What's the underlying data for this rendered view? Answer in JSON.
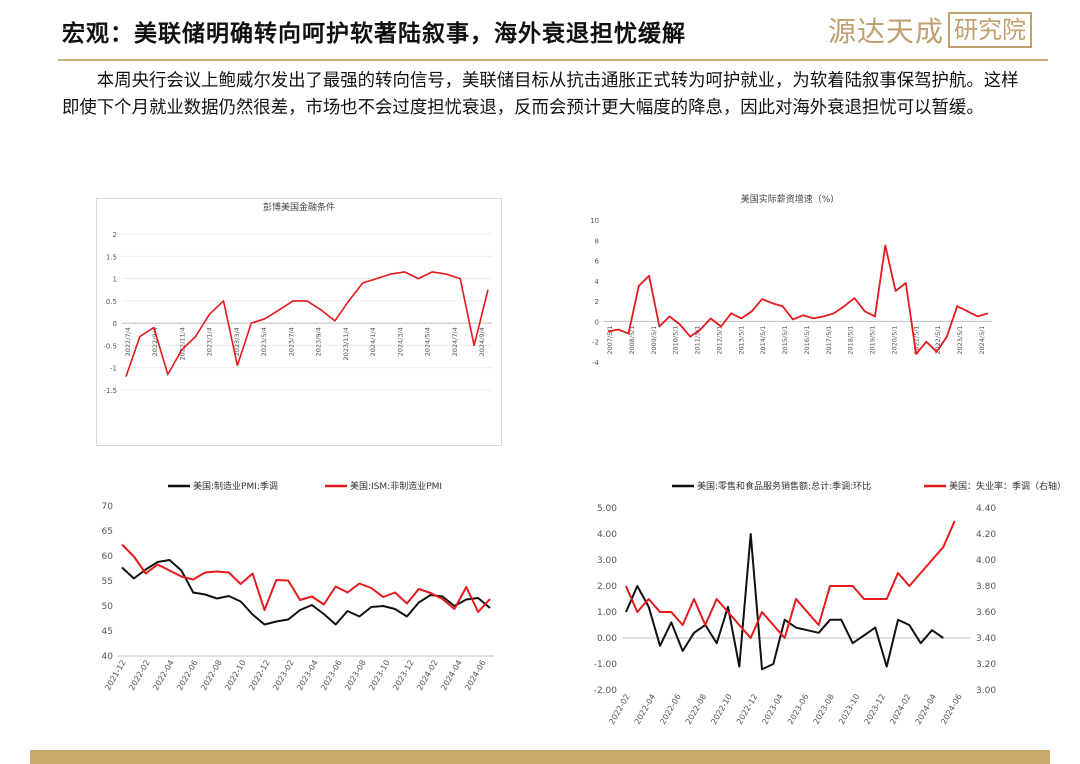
{
  "header": {
    "title": "宏观：美联储明确转向呵护软著陆叙事，海外衰退担忧缓解",
    "logo_text": "源达天成",
    "logo_box_text": "研究院"
  },
  "body_text": "本周央行会议上鲍威尔发出了最强的转向信号，美联储目标从抗击通胀正式转为呵护就业，为软着陆叙事保驾护航。这样即使下个月就业数据仍然很差，市场也不会过度担忧衰退，反而会预计更大幅度的降息，因此对海外衰退担忧可以暂缓。",
  "colors": {
    "accent": "#c9aa6c",
    "red": "#e41a1c",
    "black": "#111111"
  },
  "chart_data": [
    {
      "type": "line",
      "title": "彭博美国金融条件",
      "ylim": [
        -1.5,
        2
      ],
      "yticks": [
        "-1.5",
        "-1",
        "-0.5",
        "0",
        "0.5",
        "1",
        "1.5",
        "2"
      ],
      "yticks_num": [
        -1.5,
        -1,
        -0.5,
        0,
        0.5,
        1,
        1.5,
        2
      ],
      "categories": [
        "2022/7/4",
        "2022/9/4",
        "2022/11/4",
        "2023/1/4",
        "2023/3/4",
        "2023/5/4",
        "2023/7/4",
        "2023/9/4",
        "2023/11/4",
        "2024/1/4",
        "2024/3/4",
        "2024/5/4",
        "2024/7/4",
        "2024/9/4"
      ],
      "x": [
        "2022/7/4",
        "2022/8/4",
        "2022/9/4",
        "2022/10/4",
        "2022/11/4",
        "2022/12/4",
        "2023/1/4",
        "2023/2/4",
        "2023/3/4",
        "2023/4/4",
        "2023/5/4",
        "2023/6/4",
        "2023/7/4",
        "2023/8/4",
        "2023/9/4",
        "2023/10/4",
        "2023/11/4",
        "2023/12/4",
        "2024/1/4",
        "2024/2/4",
        "2024/3/4",
        "2024/4/4",
        "2024/5/4",
        "2024/6/4",
        "2024/7/4",
        "2024/8/4",
        "2024/9/4"
      ],
      "series": [
        {
          "values": [
            -1.2,
            -0.3,
            -0.1,
            -1.15,
            -0.6,
            -0.3,
            0.2,
            0.5,
            -0.95,
            0.0,
            0.1,
            0.3,
            0.5,
            0.5,
            0.3,
            0.05,
            0.5,
            0.9,
            1.0,
            1.1,
            1.15,
            1.0,
            1.15,
            1.1,
            1.0,
            -0.5,
            0.75
          ]
        }
      ],
      "grid": true,
      "grid_axis": "y"
    },
    {
      "type": "line",
      "title": "美国实际薪资增速（%）",
      "ylim": [
        -4,
        10
      ],
      "yticks": [
        "-4",
        "-2",
        "0",
        "2",
        "4",
        "6",
        "8",
        "10"
      ],
      "yticks_num": [
        -4,
        -2,
        0,
        2,
        4,
        6,
        8,
        10
      ],
      "categories": [
        "2007/5/1",
        "2008/5/1",
        "2009/5/1",
        "2010/5/1",
        "2011/5/1",
        "2012/5/1",
        "2013/5/1",
        "2014/5/1",
        "2015/5/1",
        "2016/5/1",
        "2017/5/1",
        "2018/5/1",
        "2019/5/1",
        "2020/5/1",
        "2021/5/1",
        "2022/5/1",
        "2023/5/1",
        "2024/5/1"
      ],
      "x": [
        "2007",
        "2007.5",
        "2008",
        "2008.5",
        "2009",
        "2009.5",
        "2010",
        "2010.5",
        "2011",
        "2011.5",
        "2012",
        "2012.5",
        "2013",
        "2013.5",
        "2014",
        "2014.5",
        "2015",
        "2015.5",
        "2016",
        "2016.5",
        "2017",
        "2017.5",
        "2018",
        "2018.5",
        "2019",
        "2019.5",
        "2020",
        "2020.3",
        "2020.5",
        "2020.8",
        "2021",
        "2021.5",
        "2022",
        "2022.5",
        "2023",
        "2023.5",
        "2024",
        "2024.5"
      ],
      "series": [
        {
          "values": [
            -1,
            -0.8,
            -1.2,
            3.5,
            4.5,
            -0.5,
            0.5,
            -0.3,
            -1.5,
            -0.8,
            0.3,
            -0.5,
            0.8,
            0.3,
            1.0,
            2.2,
            1.8,
            1.5,
            0.2,
            0.6,
            0.3,
            0.5,
            0.8,
            1.5,
            2.3,
            1.0,
            0.5,
            7.5,
            3.0,
            3.8,
            -3.2,
            -2.0,
            -3.0,
            -1.5,
            1.5,
            1.0,
            0.5,
            0.8
          ]
        }
      ],
      "grid": false
    },
    {
      "type": "line",
      "ylim": [
        40,
        70
      ],
      "yticks": [
        "40",
        "45",
        "50",
        "55",
        "60",
        "65",
        "70"
      ],
      "yticks_num": [
        40,
        45,
        50,
        55,
        60,
        65,
        70
      ],
      "categories": [
        "2021-12",
        "2022-02",
        "2022-04",
        "2022-06",
        "2022-08",
        "2022-10",
        "2022-12",
        "2023-02",
        "2023-04",
        "2023-06",
        "2023-08",
        "2023-10",
        "2023-12",
        "2024-02",
        "2024-04",
        "2024-06"
      ],
      "x": [
        "2021-12",
        "2022-01",
        "2022-02",
        "2022-03",
        "2022-04",
        "2022-05",
        "2022-06",
        "2022-07",
        "2022-08",
        "2022-09",
        "2022-10",
        "2022-11",
        "2022-12",
        "2023-01",
        "2023-02",
        "2023-03",
        "2023-04",
        "2023-05",
        "2023-06",
        "2023-07",
        "2023-08",
        "2023-09",
        "2023-10",
        "2023-11",
        "2023-12",
        "2024-01",
        "2024-02",
        "2024-03",
        "2024-04",
        "2024-05",
        "2024-06",
        "2024-07"
      ],
      "series": [
        {
          "name": "美国:制造业PMI:季调",
          "color": "#111111",
          "values": [
            57.7,
            55.5,
            57.3,
            58.8,
            59.2,
            57.1,
            52.7,
            52.3,
            51.5,
            52.0,
            50.9,
            48.3,
            46.3,
            46.9,
            47.3,
            49.2,
            50.2,
            48.4,
            46.3,
            49.0,
            47.9,
            49.8,
            50.0,
            49.4,
            47.9,
            50.7,
            52.2,
            51.9,
            50.0,
            51.3,
            51.6,
            49.6
          ]
        },
        {
          "name": "美国:ISM:非制造业PMI",
          "color": "#e41a1c",
          "values": [
            62.3,
            59.9,
            56.5,
            58.3,
            57.1,
            55.9,
            55.3,
            56.7,
            56.9,
            56.7,
            54.4,
            56.5,
            49.2,
            55.2,
            55.1,
            51.2,
            51.9,
            50.3,
            53.9,
            52.7,
            54.5,
            53.6,
            51.8,
            52.7,
            50.5,
            53.4,
            52.6,
            51.4,
            49.4,
            53.8,
            48.8,
            51.4
          ]
        }
      ],
      "legend": "top",
      "grid": false
    },
    {
      "type": "line",
      "ylim": [
        -2,
        5
      ],
      "yticks": [
        "-2.00",
        "-1.00",
        "0.00",
        "1.00",
        "2.00",
        "3.00",
        "4.00",
        "5.00"
      ],
      "yticks_num": [
        -2,
        -1,
        0,
        1,
        2,
        3,
        4,
        5
      ],
      "y2lim": [
        3.0,
        4.4
      ],
      "y2ticks": [
        "3.00",
        "3.20",
        "3.40",
        "3.60",
        "3.80",
        "4.00",
        "4.20",
        "4.40"
      ],
      "y2ticks_num": [
        3.0,
        3.2,
        3.4,
        3.6,
        3.8,
        4.0,
        4.2,
        4.4
      ],
      "categories": [
        "2022-02",
        "2022-04",
        "2022-06",
        "2022-08",
        "2022-10",
        "2022-12",
        "2023-04",
        "2023-06",
        "2023-08",
        "2023-10",
        "2023-12",
        "2024-02",
        "2024-04",
        "2024-06"
      ],
      "x": [
        "2022-02",
        "2022-03",
        "2022-04",
        "2022-05",
        "2022-06",
        "2022-07",
        "2022-08",
        "2022-09",
        "2022-10",
        "2022-11",
        "2022-12",
        "2023-01",
        "2023-02",
        "2023-03",
        "2023-04",
        "2023-05",
        "2023-06",
        "2023-07",
        "2023-08",
        "2023-09",
        "2023-10",
        "2023-11",
        "2023-12",
        "2024-01",
        "2024-02",
        "2024-03",
        "2024-04",
        "2024-05",
        "2024-06",
        "2024-07",
        "2024-08"
      ],
      "series": [
        {
          "name": "美国:零售和食品服务销售额:总计:季调:环比",
          "color": "#111111",
          "axis": "left",
          "values": [
            1.0,
            2.0,
            1.2,
            -0.3,
            0.6,
            -0.5,
            0.2,
            0.5,
            -0.2,
            1.2,
            -1.1,
            4.0,
            -1.2,
            -1.0,
            0.7,
            0.4,
            0.3,
            0.2,
            0.7,
            0.7,
            -0.2,
            0.1,
            0.4,
            -1.1,
            0.7,
            0.5,
            -0.2,
            0.3,
            0.0,
            null,
            null
          ]
        },
        {
          "name": "美国：失业率：季调（右轴）",
          "color": "#e41a1c",
          "axis": "right",
          "values": [
            3.8,
            3.6,
            3.7,
            3.6,
            3.6,
            3.5,
            3.7,
            3.5,
            3.7,
            3.6,
            3.5,
            3.4,
            3.6,
            3.5,
            3.4,
            3.7,
            3.6,
            3.5,
            3.8,
            3.8,
            3.8,
            3.7,
            3.7,
            3.7,
            3.9,
            3.8,
            3.9,
            4.0,
            4.1,
            4.3,
            null
          ]
        }
      ],
      "legend": "top",
      "grid": false
    }
  ]
}
